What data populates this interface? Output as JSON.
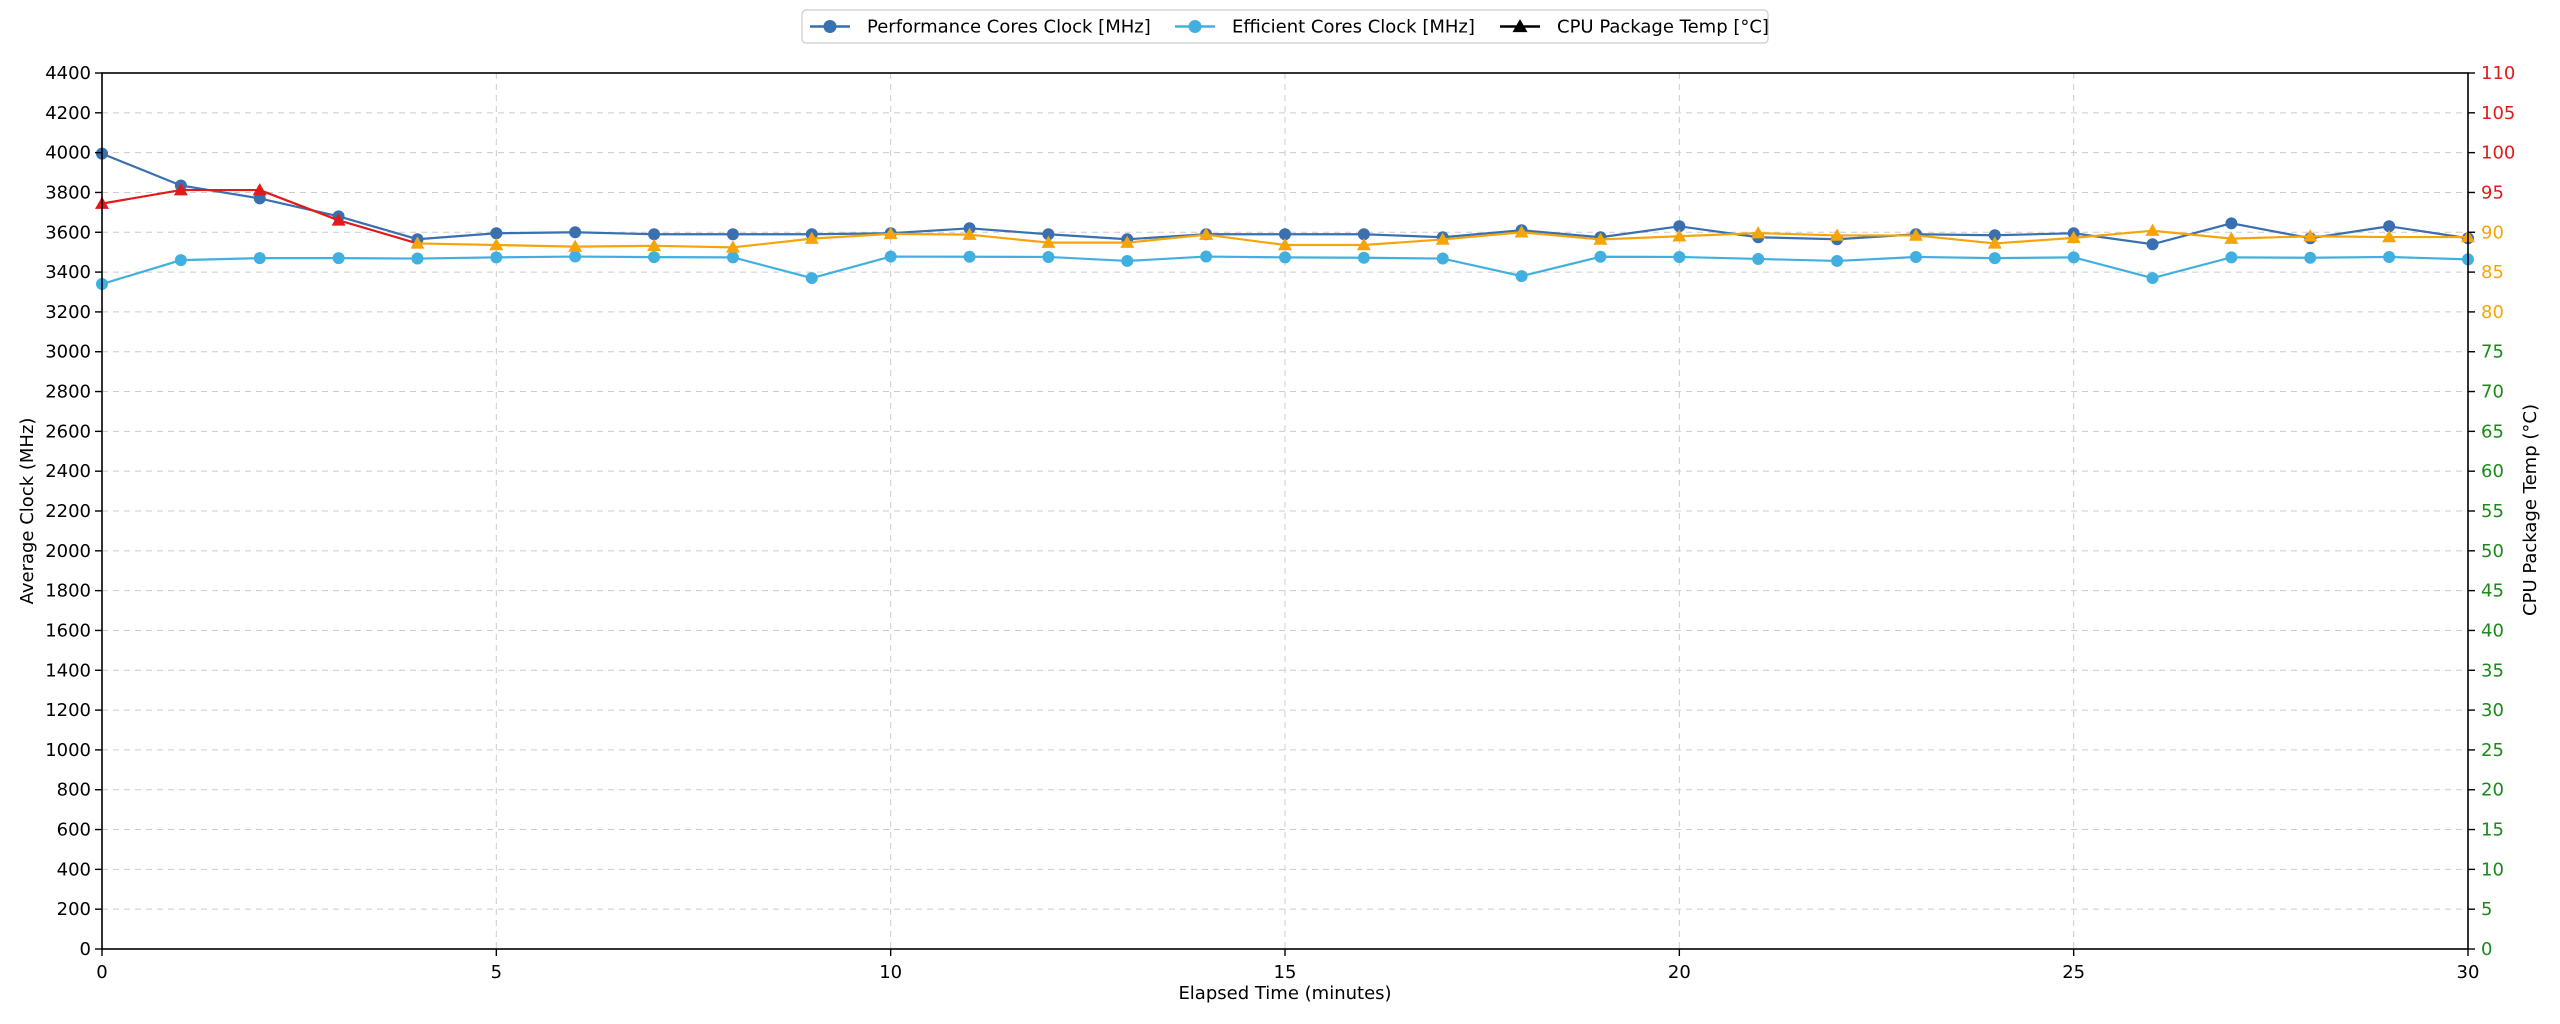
{
  "chart_data": {
    "type": "line",
    "title": "",
    "xlabel": "Elapsed Time (minutes)",
    "ylabel": "Average Clock (MHz)",
    "y2label": "CPU Package Temp (°C)",
    "xlim": [
      0,
      30
    ],
    "ylim": [
      0,
      4400
    ],
    "y2lim": [
      0,
      110
    ],
    "x_ticks": [
      0,
      5,
      10,
      15,
      20,
      25,
      30
    ],
    "y_ticks": [
      0,
      200,
      400,
      600,
      800,
      1000,
      1200,
      1400,
      1600,
      1800,
      2000,
      2200,
      2400,
      2600,
      2800,
      3000,
      3200,
      3400,
      3600,
      3800,
      4000,
      4200,
      4400
    ],
    "y2_ticks": [
      0,
      5,
      10,
      15,
      20,
      25,
      30,
      35,
      40,
      45,
      50,
      55,
      60,
      65,
      70,
      75,
      80,
      85,
      90,
      95,
      100,
      105,
      110
    ],
    "grid": true,
    "legend_position": "top-center",
    "x": [
      0,
      1,
      2,
      3,
      4,
      5,
      6,
      7,
      8,
      9,
      10,
      11,
      12,
      13,
      14,
      15,
      16,
      17,
      18,
      19,
      20,
      21,
      22,
      23,
      24,
      25,
      26,
      27,
      28,
      29,
      30
    ],
    "series": [
      {
        "name": "Performance Cores Clock [MHz]",
        "axis": "left",
        "marker": "circle",
        "color": "#3a6fb0",
        "values": [
          3995,
          3835,
          3770,
          3680,
          3565,
          3595,
          3600,
          3590,
          3590,
          3590,
          3595,
          3620,
          3590,
          3565,
          3590,
          3590,
          3590,
          3575,
          3610,
          3575,
          3630,
          3575,
          3565,
          3590,
          3585,
          3595,
          3540,
          3645,
          3570,
          3630,
          3570
        ]
      },
      {
        "name": "Efficient Cores Clock [MHz]",
        "axis": "left",
        "marker": "circle",
        "color": "#41b0e0",
        "values": [
          3340,
          3460,
          3470,
          3470,
          3468,
          3474,
          3478,
          3475,
          3474,
          3370,
          3478,
          3477,
          3476,
          3456,
          3478,
          3474,
          3472,
          3468,
          3380,
          3477,
          3476,
          3466,
          3456,
          3476,
          3470,
          3474,
          3370,
          3474,
          3472,
          3476,
          3464
        ]
      },
      {
        "name": "CPU Package Temp [°C]",
        "axis": "right",
        "marker": "triangle",
        "color": "#000000",
        "values": [
          93.6,
          95.3,
          95.3,
          91.5,
          88.6,
          88.4,
          88.2,
          88.3,
          88.1,
          89.2,
          89.8,
          89.7,
          88.7,
          88.7,
          89.7,
          88.4,
          88.4,
          89.1,
          90.0,
          89.1,
          89.5,
          89.9,
          89.6,
          89.6,
          88.6,
          89.3,
          90.2,
          89.2,
          89.5,
          89.4,
          89.4
        ],
        "colors_by_value": {
          "hot": "#e31a1c",
          "warm": "#f5a40c"
        }
      }
    ],
    "left_tick_color": "#000000",
    "right_tick_colors": {
      "below_80": "#1a8a1a",
      "80_to_90": "#f5a40c",
      "above_90": "#e31a1c"
    }
  }
}
